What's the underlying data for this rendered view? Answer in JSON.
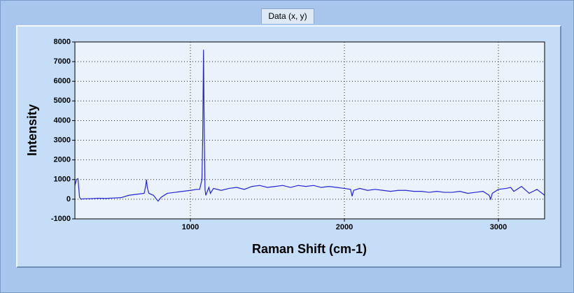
{
  "tab": "Data (x, y)",
  "chart_data": {
    "type": "line",
    "x_label": "Raman Shift (cm-1)",
    "y_label": "Intensity",
    "xlim": [
      250,
      3300
    ],
    "ylim": [
      -1000,
      8000
    ],
    "xticks": [
      1000,
      2000,
      3000
    ],
    "yticks": [
      -1000,
      0,
      1000,
      2000,
      3000,
      4000,
      5000,
      6000,
      7000,
      8000
    ],
    "grid": true,
    "x": [
      250,
      260,
      270,
      280,
      290,
      300,
      350,
      400,
      450,
      500,
      550,
      600,
      650,
      700,
      710,
      715,
      720,
      730,
      760,
      790,
      810,
      850,
      900,
      950,
      1000,
      1040,
      1060,
      1075,
      1080,
      1085,
      1090,
      1095,
      1100,
      1110,
      1120,
      1130,
      1150,
      1200,
      1250,
      1300,
      1350,
      1400,
      1450,
      1500,
      1550,
      1600,
      1650,
      1700,
      1750,
      1800,
      1850,
      1900,
      1950,
      2000,
      2040,
      2050,
      2060,
      2100,
      2150,
      2200,
      2250,
      2300,
      2350,
      2400,
      2450,
      2500,
      2550,
      2600,
      2650,
      2700,
      2750,
      2800,
      2850,
      2900,
      2940,
      2950,
      2960,
      3000,
      3050,
      3080,
      3100,
      3150,
      3200,
      3250,
      3300
    ],
    "series": [
      {
        "color": "#2424d6",
        "values": [
          700,
          1000,
          1050,
          100,
          0,
          20,
          30,
          50,
          40,
          60,
          80,
          200,
          250,
          300,
          700,
          1000,
          600,
          300,
          200,
          -100,
          100,
          300,
          350,
          400,
          450,
          500,
          500,
          1000,
          3200,
          7600,
          3300,
          500,
          200,
          400,
          600,
          300,
          550,
          450,
          550,
          600,
          500,
          650,
          700,
          600,
          650,
          700,
          600,
          700,
          650,
          700,
          600,
          650,
          600,
          550,
          500,
          150,
          450,
          550,
          450,
          500,
          450,
          400,
          450,
          450,
          400,
          400,
          350,
          400,
          350,
          350,
          400,
          300,
          350,
          400,
          200,
          0,
          300,
          500,
          550,
          600,
          400,
          650,
          300,
          500,
          200
        ]
      }
    ]
  }
}
